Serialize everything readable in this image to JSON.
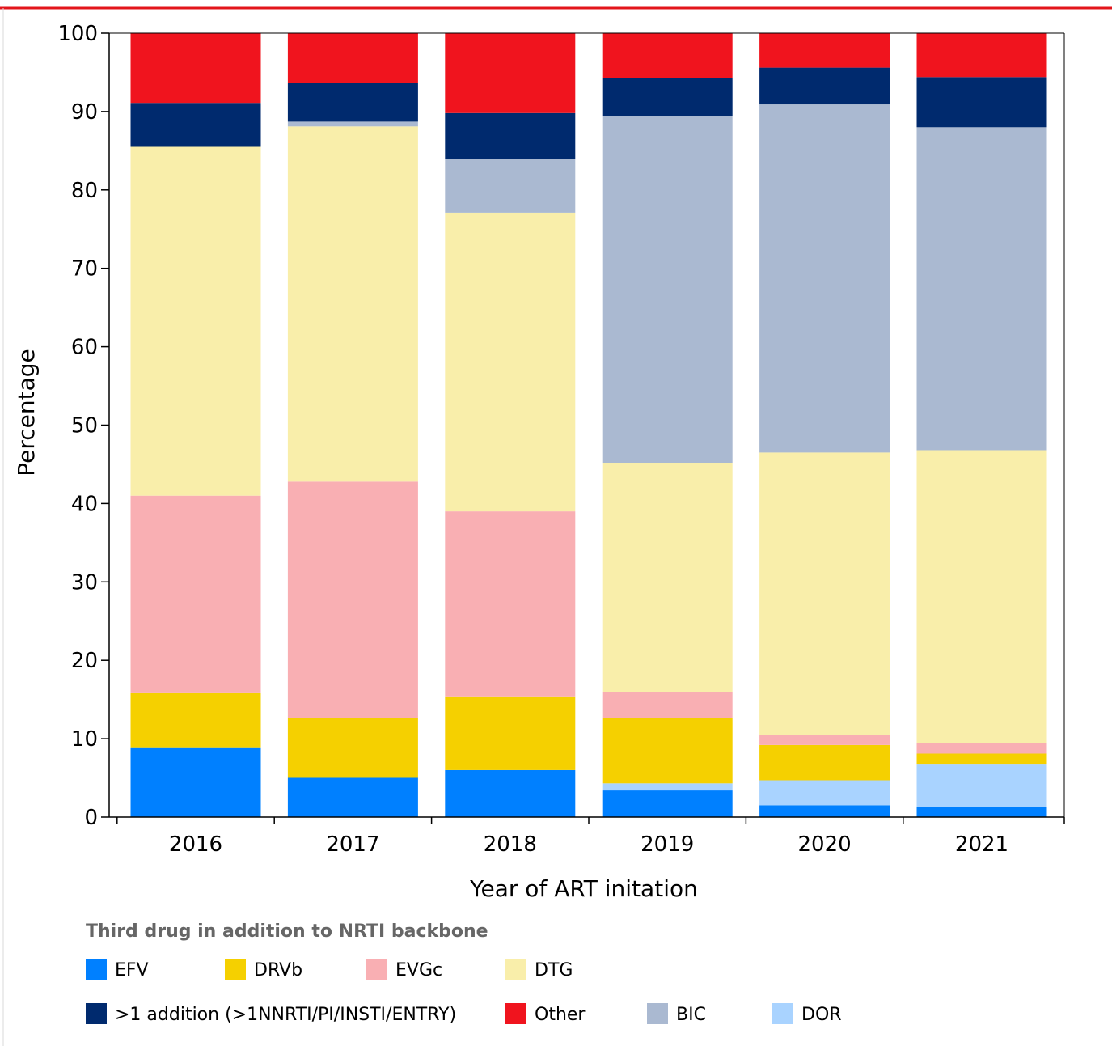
{
  "chart_data": {
    "type": "bar",
    "stacked": true,
    "title": "",
    "xlabel": "Year of ART initation",
    "ylabel": "Percentage",
    "ylim": [
      0,
      100
    ],
    "yticks": [
      0,
      10,
      20,
      30,
      40,
      50,
      60,
      70,
      80,
      90,
      100
    ],
    "grid": false,
    "categories": [
      "2016",
      "2017",
      "2018",
      "2019",
      "2020",
      "2021"
    ],
    "series": [
      {
        "name": "EFV",
        "color": "#0080ff",
        "values": [
          8.8,
          5.0,
          6.0,
          3.4,
          1.5,
          1.3
        ]
      },
      {
        "name": "DOR",
        "color": "#a9d3ff",
        "values": [
          0,
          0,
          0,
          0.9,
          3.2,
          5.4
        ]
      },
      {
        "name": "DRVb",
        "color": "#f5d000",
        "values": [
          7.0,
          7.6,
          9.4,
          8.3,
          4.5,
          1.4
        ]
      },
      {
        "name": "EVGc",
        "color": "#f9afb3",
        "values": [
          25.2,
          30.2,
          23.6,
          3.3,
          1.3,
          1.3
        ]
      },
      {
        "name": "DTG",
        "color": "#f9eeaa",
        "values": [
          44.5,
          45.3,
          38.1,
          29.3,
          36.0,
          37.4
        ]
      },
      {
        "name": "BIC",
        "color": "#aab9d1",
        "values": [
          0,
          0.6,
          6.9,
          44.2,
          44.4,
          41.2
        ]
      },
      {
        "name": ">1 addition (>1NNRTI/PI/INSTI/ENTRY)",
        "color": "#002a6e",
        "values": [
          5.6,
          5.0,
          5.8,
          4.9,
          4.7,
          6.4
        ]
      },
      {
        "name": "Other",
        "color": "#f0141e",
        "values": [
          8.9,
          6.3,
          10.2,
          5.7,
          4.4,
          5.6
        ]
      }
    ],
    "legend_title": "Third drug in addition to NRTI backbone",
    "legend_order": [
      "EFV",
      "DRVb",
      "EVGc",
      "DTG",
      ">1 addition (>1NNRTI/PI/INSTI/ENTRY)",
      "Other",
      "BIC",
      "DOR"
    ],
    "legend_position": "bottom"
  },
  "colors": {
    "frame_accent": "#e3151b"
  }
}
